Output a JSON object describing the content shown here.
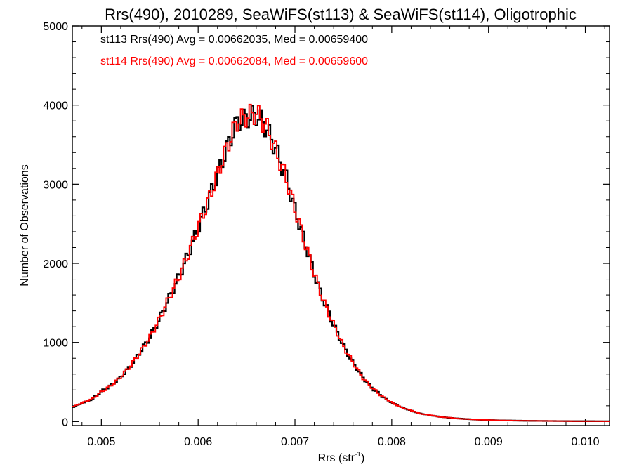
{
  "chart_data": {
    "type": "line",
    "title": "Rrs(490), 2010289, SeaWiFS(st113) & SeaWiFS(st114), Oligotrophic",
    "xlabel": "Rrs (str",
    "xlabel_sup": "-1",
    "xlabel_close": ")",
    "ylabel": "Number of Observations",
    "xlim": [
      0.0047,
      0.01025
    ],
    "ylim": [
      -50,
      5000
    ],
    "x_ticks": [
      0.005,
      0.006,
      0.007,
      0.008,
      0.009,
      0.01
    ],
    "x_tick_labels": [
      "0.005",
      "0.006",
      "0.007",
      "0.008",
      "0.009",
      "0.010"
    ],
    "y_ticks": [
      0,
      1000,
      2000,
      3000,
      4000,
      5000
    ],
    "y_tick_labels": [
      "0",
      "1000",
      "2000",
      "3000",
      "4000",
      "5000"
    ],
    "grid": false,
    "legend_position": "top-left",
    "annotations": [
      {
        "text": "st113 Rrs(490) Avg = 0.00662035, Med = 0.00659400",
        "color": "#000000"
      },
      {
        "text": "st114 Rrs(490) Avg = 0.00662084, Med = 0.00659600",
        "color": "#ff0000"
      }
    ],
    "x": [
      0.0047,
      0.0049,
      0.005,
      0.0051,
      0.0052,
      0.0053,
      0.0054,
      0.0055,
      0.0056,
      0.0057,
      0.0058,
      0.0059,
      0.006,
      0.0061,
      0.0062,
      0.0063,
      0.0064,
      0.0065,
      0.0066,
      0.0067,
      0.0068,
      0.0069,
      0.007,
      0.0071,
      0.0072,
      0.0073,
      0.0074,
      0.0075,
      0.0076,
      0.0077,
      0.0078,
      0.0079,
      0.008,
      0.0081,
      0.0082,
      0.0083,
      0.0084,
      0.0085,
      0.0086,
      0.0087,
      0.0088,
      0.0089,
      0.009,
      0.0091,
      0.0092,
      0.0093,
      0.0094,
      0.0095,
      0.0096,
      0.0097,
      0.0098,
      0.0099,
      0.01,
      0.01025
    ],
    "series": [
      {
        "name": "st113",
        "color": "#000000",
        "values": [
          180,
          280,
          380,
          460,
          560,
          700,
          880,
          1060,
          1300,
          1560,
          1830,
          2120,
          2450,
          2780,
          3120,
          3470,
          3780,
          3840,
          3880,
          3720,
          3450,
          3120,
          2680,
          2280,
          1860,
          1520,
          1220,
          960,
          740,
          560,
          420,
          320,
          240,
          180,
          140,
          100,
          80,
          60,
          48,
          38,
          30,
          24,
          20,
          16,
          14,
          12,
          10,
          9,
          8,
          7,
          6,
          5,
          5,
          4
        ]
      },
      {
        "name": "st114",
        "color": "#ff0000",
        "values": [
          185,
          285,
          375,
          455,
          565,
          705,
          875,
          1065,
          1295,
          1565,
          1825,
          2125,
          2455,
          2775,
          3125,
          3475,
          3790,
          3860,
          3900,
          3740,
          3430,
          3110,
          2690,
          2270,
          1870,
          1510,
          1225,
          955,
          745,
          555,
          425,
          318,
          242,
          178,
          142,
          98,
          82,
          58,
          50,
          36,
          31,
          23,
          21,
          15,
          14,
          11,
          10,
          9,
          8,
          7,
          6,
          5,
          5,
          4
        ]
      }
    ]
  }
}
